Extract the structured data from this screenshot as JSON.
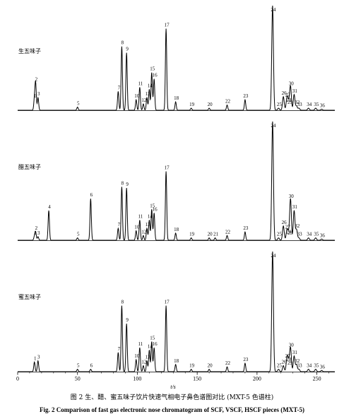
{
  "figure": {
    "caption_cn": "图 2 生、醋、蜜五味子饮片快速气相电子鼻色谱图对比 (MXT-5 色谱柱)",
    "caption_en": "Fig. 2 Comparison of fast gas electronic nose chromatogram of SCF, VSCF, HSCF pieces (MXT-5)"
  },
  "chart_data": {
    "type": "line",
    "xlabel": "t/s",
    "x_ticks": [
      0,
      50,
      100,
      150,
      200,
      250
    ],
    "xlim": [
      0,
      265
    ],
    "colors": {
      "trace": "#000000"
    },
    "panels": [
      {
        "name": "生五味子",
        "peaks": [
          {
            "label": "1",
            "t": 14,
            "h": 0.1
          },
          {
            "label": "2",
            "t": 15,
            "h": 0.26
          },
          {
            "label": "3",
            "t": 17,
            "h": 0.12
          },
          {
            "label": "5",
            "t": 50,
            "h": 0.03
          },
          {
            "label": "7",
            "t": 84,
            "h": 0.18
          },
          {
            "label": "8",
            "t": 87,
            "h": 0.61
          },
          {
            "label": "9",
            "t": 91,
            "h": 0.55
          },
          {
            "label": "10",
            "t": 99,
            "h": 0.1
          },
          {
            "label": "11",
            "t": 102,
            "h": 0.22
          },
          {
            "label": "12",
            "t": 105,
            "h": 0.06
          },
          {
            "label": "13",
            "t": 108,
            "h": 0.12
          },
          {
            "label": "14",
            "t": 110,
            "h": 0.2
          },
          {
            "label": "15",
            "t": 112,
            "h": 0.36
          },
          {
            "label": "16",
            "t": 114,
            "h": 0.3
          },
          {
            "label": "17",
            "t": 124,
            "h": 0.78
          },
          {
            "label": "18",
            "t": 132,
            "h": 0.08
          },
          {
            "label": "19",
            "t": 145,
            "h": 0.02
          },
          {
            "label": "20",
            "t": 160,
            "h": 0.02
          },
          {
            "label": "22",
            "t": 175,
            "h": 0.05
          },
          {
            "label": "23",
            "t": 190,
            "h": 0.1
          },
          {
            "label": "24",
            "t": 213,
            "h": 1.0
          },
          {
            "label": "25",
            "t": 218,
            "h": 0.02
          },
          {
            "label": "26",
            "t": 222,
            "h": 0.13
          },
          {
            "label": "27",
            "t": 225,
            "h": 0.11
          },
          {
            "label": "28",
            "t": 226,
            "h": 0.06
          },
          {
            "label": "29",
            "t": 227,
            "h": 0.04
          },
          {
            "label": "30",
            "t": 228,
            "h": 0.22
          },
          {
            "label": "31",
            "t": 231,
            "h": 0.15
          },
          {
            "label": "32",
            "t": 233,
            "h": 0.04
          },
          {
            "label": "33",
            "t": 235,
            "h": 0.02
          },
          {
            "label": "34",
            "t": 243,
            "h": 0.02
          },
          {
            "label": "35",
            "t": 249,
            "h": 0.02
          },
          {
            "label": "36",
            "t": 254,
            "h": 0.01
          }
        ]
      },
      {
        "name": "醋五味子",
        "peaks": [
          {
            "label": "1",
            "t": 14,
            "h": 0.03
          },
          {
            "label": "2",
            "t": 15,
            "h": 0.07
          },
          {
            "label": "3",
            "t": 17,
            "h": 0.03
          },
          {
            "label": "4",
            "t": 26,
            "h": 0.25
          },
          {
            "label": "5",
            "t": 50,
            "h": 0.02
          },
          {
            "label": "6",
            "t": 61,
            "h": 0.35
          },
          {
            "label": "7",
            "t": 84,
            "h": 0.1
          },
          {
            "label": "8",
            "t": 87,
            "h": 0.45
          },
          {
            "label": "9",
            "t": 91,
            "h": 0.44
          },
          {
            "label": "10",
            "t": 99,
            "h": 0.08
          },
          {
            "label": "11",
            "t": 102,
            "h": 0.17
          },
          {
            "label": "12",
            "t": 105,
            "h": 0.04
          },
          {
            "label": "13",
            "t": 108,
            "h": 0.1
          },
          {
            "label": "14",
            "t": 110,
            "h": 0.17
          },
          {
            "label": "15",
            "t": 112,
            "h": 0.26
          },
          {
            "label": "16",
            "t": 114,
            "h": 0.23
          },
          {
            "label": "17",
            "t": 124,
            "h": 0.58
          },
          {
            "label": "18",
            "t": 132,
            "h": 0.06
          },
          {
            "label": "19",
            "t": 145,
            "h": 0.02
          },
          {
            "label": "20",
            "t": 160,
            "h": 0.02
          },
          {
            "label": "21",
            "t": 165,
            "h": 0.02
          },
          {
            "label": "22",
            "t": 175,
            "h": 0.04
          },
          {
            "label": "23",
            "t": 190,
            "h": 0.07
          },
          {
            "label": "24",
            "t": 213,
            "h": 1.0
          },
          {
            "label": "25",
            "t": 218,
            "h": 0.02
          },
          {
            "label": "26",
            "t": 222,
            "h": 0.12
          },
          {
            "label": "27",
            "t": 225,
            "h": 0.08
          },
          {
            "label": "28",
            "t": 226,
            "h": 0.04
          },
          {
            "label": "29",
            "t": 227,
            "h": 0.03
          },
          {
            "label": "30",
            "t": 228,
            "h": 0.34
          },
          {
            "label": "31",
            "t": 231,
            "h": 0.25
          },
          {
            "label": "32",
            "t": 233,
            "h": 0.09
          },
          {
            "label": "33",
            "t": 235,
            "h": 0.02
          },
          {
            "label": "34",
            "t": 243,
            "h": 0.02
          },
          {
            "label": "35",
            "t": 249,
            "h": 0.02
          },
          {
            "label": "36",
            "t": 254,
            "h": 0.01
          }
        ]
      },
      {
        "name": "蜜五味子",
        "peaks": [
          {
            "label": "1",
            "t": 14,
            "h": 0.08
          },
          {
            "label": "3",
            "t": 17,
            "h": 0.09
          },
          {
            "label": "5",
            "t": 50,
            "h": 0.02
          },
          {
            "label": "6",
            "t": 61,
            "h": 0.02
          },
          {
            "label": "7",
            "t": 84,
            "h": 0.16
          },
          {
            "label": "8",
            "t": 87,
            "h": 0.55
          },
          {
            "label": "9",
            "t": 91,
            "h": 0.4
          },
          {
            "label": "10",
            "t": 99,
            "h": 0.1
          },
          {
            "label": "11",
            "t": 102,
            "h": 0.2
          },
          {
            "label": "12",
            "t": 105,
            "h": 0.05
          },
          {
            "label": "13",
            "t": 108,
            "h": 0.09
          },
          {
            "label": "14",
            "t": 110,
            "h": 0.18
          },
          {
            "label": "15",
            "t": 112,
            "h": 0.25
          },
          {
            "label": "16",
            "t": 114,
            "h": 0.2
          },
          {
            "label": "17",
            "t": 124,
            "h": 0.55
          },
          {
            "label": "18",
            "t": 132,
            "h": 0.06
          },
          {
            "label": "19",
            "t": 145,
            "h": 0.02
          },
          {
            "label": "20",
            "t": 160,
            "h": 0.02
          },
          {
            "label": "22",
            "t": 175,
            "h": 0.04
          },
          {
            "label": "23",
            "t": 190,
            "h": 0.07
          },
          {
            "label": "24",
            "t": 213,
            "h": 1.0
          },
          {
            "label": "25",
            "t": 218,
            "h": 0.02
          },
          {
            "label": "26",
            "t": 222,
            "h": 0.05
          },
          {
            "label": "27",
            "t": 225,
            "h": 0.1
          },
          {
            "label": "28",
            "t": 226,
            "h": 0.07
          },
          {
            "label": "29",
            "t": 227,
            "h": 0.04
          },
          {
            "label": "30",
            "t": 228,
            "h": 0.19
          },
          {
            "label": "31",
            "t": 231,
            "h": 0.13
          },
          {
            "label": "32",
            "t": 233,
            "h": 0.06
          },
          {
            "label": "33",
            "t": 235,
            "h": 0.02
          },
          {
            "label": "34",
            "t": 243,
            "h": 0.02
          },
          {
            "label": "35",
            "t": 249,
            "h": 0.02
          },
          {
            "label": "36",
            "t": 254,
            "h": 0.01
          }
        ]
      }
    ]
  }
}
